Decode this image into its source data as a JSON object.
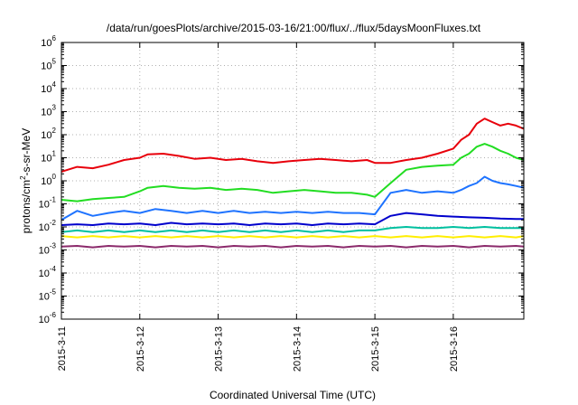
{
  "chart_data": {
    "type": "line",
    "title": "/data/run/goesPlots/archive/2015-03-16/21:00/flux/../flux/5daysMoonFluxes.txt",
    "xlabel": "Coordinated Universal Time (UTC)",
    "ylabel": {
      "main": "protons/cm",
      "sup": "2",
      "rest": "-s-sr-MeV"
    },
    "yscale": "log",
    "ylim": [
      1e-06,
      1000000.0
    ],
    "xlim": [
      0,
      5.9
    ],
    "grid": true,
    "x_tick_labels": [
      "2015-3-11",
      "2015-3-12",
      "2015-3-13",
      "2015-3-14",
      "2015-3-15",
      "2015-3-16"
    ],
    "x_ticks": [
      0,
      1,
      2,
      3,
      4,
      5
    ],
    "y_ticks": [
      {
        "base": "10",
        "exp": "-6"
      },
      {
        "base": "10",
        "exp": "-5"
      },
      {
        "base": "10",
        "exp": "-4"
      },
      {
        "base": "10",
        "exp": "-3"
      },
      {
        "base": "10",
        "exp": "-2"
      },
      {
        "base": "10",
        "exp": "-1"
      },
      {
        "base": "10",
        "exp": "0"
      },
      {
        "base": "10",
        "exp": "1"
      },
      {
        "base": "10",
        "exp": "2"
      },
      {
        "base": "10",
        "exp": "3"
      },
      {
        "base": "10",
        "exp": "4"
      },
      {
        "base": "10",
        "exp": "5"
      },
      {
        "base": "10",
        "exp": "6"
      }
    ],
    "series": [
      {
        "color": "#e8000b",
        "points": [
          [
            0,
            2.5
          ],
          [
            0.2,
            4
          ],
          [
            0.4,
            3.5
          ],
          [
            0.6,
            5
          ],
          [
            0.8,
            8
          ],
          [
            1.0,
            10
          ],
          [
            1.1,
            14
          ],
          [
            1.3,
            15
          ],
          [
            1.5,
            12
          ],
          [
            1.7,
            9
          ],
          [
            1.9,
            10
          ],
          [
            2.1,
            8
          ],
          [
            2.3,
            9
          ],
          [
            2.5,
            7
          ],
          [
            2.7,
            6
          ],
          [
            2.9,
            7
          ],
          [
            3.1,
            8
          ],
          [
            3.3,
            9
          ],
          [
            3.5,
            8
          ],
          [
            3.7,
            7
          ],
          [
            3.9,
            8
          ],
          [
            4.0,
            6
          ],
          [
            4.2,
            6
          ],
          [
            4.4,
            8
          ],
          [
            4.6,
            10
          ],
          [
            4.8,
            15
          ],
          [
            5.0,
            25
          ],
          [
            5.1,
            60
          ],
          [
            5.2,
            100
          ],
          [
            5.3,
            300
          ],
          [
            5.4,
            500
          ],
          [
            5.5,
            350
          ],
          [
            5.6,
            250
          ],
          [
            5.7,
            300
          ],
          [
            5.8,
            250
          ],
          [
            5.9,
            180
          ]
        ]
      },
      {
        "color": "#22dd22",
        "points": [
          [
            0,
            0.15
          ],
          [
            0.2,
            0.13
          ],
          [
            0.4,
            0.16
          ],
          [
            0.6,
            0.18
          ],
          [
            0.8,
            0.2
          ],
          [
            1.0,
            0.35
          ],
          [
            1.1,
            0.5
          ],
          [
            1.3,
            0.6
          ],
          [
            1.5,
            0.5
          ],
          [
            1.7,
            0.45
          ],
          [
            1.9,
            0.5
          ],
          [
            2.1,
            0.4
          ],
          [
            2.3,
            0.45
          ],
          [
            2.5,
            0.4
          ],
          [
            2.7,
            0.3
          ],
          [
            2.9,
            0.35
          ],
          [
            3.1,
            0.4
          ],
          [
            3.3,
            0.35
          ],
          [
            3.5,
            0.3
          ],
          [
            3.7,
            0.3
          ],
          [
            3.9,
            0.25
          ],
          [
            4.0,
            0.2
          ],
          [
            4.2,
            0.8
          ],
          [
            4.4,
            3
          ],
          [
            4.6,
            4
          ],
          [
            4.8,
            4.5
          ],
          [
            5.0,
            5
          ],
          [
            5.1,
            10
          ],
          [
            5.2,
            15
          ],
          [
            5.3,
            30
          ],
          [
            5.4,
            40
          ],
          [
            5.5,
            30
          ],
          [
            5.6,
            20
          ],
          [
            5.7,
            15
          ],
          [
            5.8,
            10
          ],
          [
            5.9,
            8
          ]
        ]
      },
      {
        "color": "#1e73ff",
        "points": [
          [
            0,
            0.02
          ],
          [
            0.2,
            0.05
          ],
          [
            0.4,
            0.03
          ],
          [
            0.6,
            0.04
          ],
          [
            0.8,
            0.05
          ],
          [
            1.0,
            0.04
          ],
          [
            1.2,
            0.06
          ],
          [
            1.4,
            0.05
          ],
          [
            1.6,
            0.04
          ],
          [
            1.8,
            0.05
          ],
          [
            2.0,
            0.04
          ],
          [
            2.2,
            0.05
          ],
          [
            2.4,
            0.04
          ],
          [
            2.6,
            0.045
          ],
          [
            2.8,
            0.04
          ],
          [
            3.0,
            0.045
          ],
          [
            3.2,
            0.04
          ],
          [
            3.4,
            0.045
          ],
          [
            3.6,
            0.04
          ],
          [
            3.8,
            0.04
          ],
          [
            4.0,
            0.035
          ],
          [
            4.2,
            0.3
          ],
          [
            4.4,
            0.4
          ],
          [
            4.6,
            0.3
          ],
          [
            4.8,
            0.35
          ],
          [
            5.0,
            0.3
          ],
          [
            5.1,
            0.4
          ],
          [
            5.2,
            0.6
          ],
          [
            5.3,
            0.8
          ],
          [
            5.4,
            1.5
          ],
          [
            5.5,
            1.0
          ],
          [
            5.6,
            0.8
          ],
          [
            5.7,
            0.7
          ],
          [
            5.8,
            0.6
          ],
          [
            5.9,
            0.5
          ]
        ]
      },
      {
        "color": "#0000cc",
        "points": [
          [
            0,
            0.012
          ],
          [
            0.2,
            0.013
          ],
          [
            0.4,
            0.012
          ],
          [
            0.6,
            0.014
          ],
          [
            0.8,
            0.013
          ],
          [
            1.0,
            0.014
          ],
          [
            1.2,
            0.012
          ],
          [
            1.4,
            0.015
          ],
          [
            1.6,
            0.013
          ],
          [
            1.8,
            0.014
          ],
          [
            2.0,
            0.013
          ],
          [
            2.2,
            0.014
          ],
          [
            2.4,
            0.012
          ],
          [
            2.6,
            0.014
          ],
          [
            2.8,
            0.013
          ],
          [
            3.0,
            0.014
          ],
          [
            3.2,
            0.012
          ],
          [
            3.4,
            0.014
          ],
          [
            3.6,
            0.013
          ],
          [
            3.8,
            0.014
          ],
          [
            4.0,
            0.013
          ],
          [
            4.2,
            0.03
          ],
          [
            4.4,
            0.04
          ],
          [
            4.6,
            0.035
          ],
          [
            4.8,
            0.03
          ],
          [
            5.0,
            0.028
          ],
          [
            5.2,
            0.026
          ],
          [
            5.4,
            0.025
          ],
          [
            5.6,
            0.023
          ],
          [
            5.8,
            0.022
          ],
          [
            5.9,
            0.022
          ]
        ]
      },
      {
        "color": "#00c0a0",
        "points": [
          [
            0,
            0.006
          ],
          [
            0.2,
            0.007
          ],
          [
            0.4,
            0.006
          ],
          [
            0.6,
            0.007
          ],
          [
            0.8,
            0.006
          ],
          [
            1.0,
            0.007
          ],
          [
            1.2,
            0.006
          ],
          [
            1.4,
            0.007
          ],
          [
            1.6,
            0.006
          ],
          [
            1.8,
            0.007
          ],
          [
            2.0,
            0.006
          ],
          [
            2.2,
            0.007
          ],
          [
            2.4,
            0.006
          ],
          [
            2.6,
            0.007
          ],
          [
            2.8,
            0.006
          ],
          [
            3.0,
            0.007
          ],
          [
            3.2,
            0.006
          ],
          [
            3.4,
            0.007
          ],
          [
            3.6,
            0.006
          ],
          [
            3.8,
            0.007
          ],
          [
            4.0,
            0.007
          ],
          [
            4.2,
            0.009
          ],
          [
            4.4,
            0.01
          ],
          [
            4.6,
            0.009
          ],
          [
            4.8,
            0.009
          ],
          [
            5.0,
            0.01
          ],
          [
            5.2,
            0.009
          ],
          [
            5.4,
            0.01
          ],
          [
            5.6,
            0.009
          ],
          [
            5.8,
            0.009
          ],
          [
            5.9,
            0.009
          ]
        ]
      },
      {
        "color": "#ffee00",
        "points": [
          [
            0,
            0.004
          ],
          [
            0.2,
            0.0035
          ],
          [
            0.4,
            0.004
          ],
          [
            0.6,
            0.0035
          ],
          [
            0.8,
            0.004
          ],
          [
            1.0,
            0.0035
          ],
          [
            1.2,
            0.004
          ],
          [
            1.4,
            0.0035
          ],
          [
            1.6,
            0.004
          ],
          [
            1.8,
            0.0035
          ],
          [
            2.0,
            0.004
          ],
          [
            2.2,
            0.0035
          ],
          [
            2.4,
            0.004
          ],
          [
            2.6,
            0.0035
          ],
          [
            2.8,
            0.004
          ],
          [
            3.0,
            0.0035
          ],
          [
            3.2,
            0.004
          ],
          [
            3.4,
            0.0035
          ],
          [
            3.6,
            0.004
          ],
          [
            3.8,
            0.0035
          ],
          [
            4.0,
            0.004
          ],
          [
            4.2,
            0.0035
          ],
          [
            4.4,
            0.004
          ],
          [
            4.6,
            0.0035
          ],
          [
            4.8,
            0.004
          ],
          [
            5.0,
            0.0035
          ],
          [
            5.2,
            0.004
          ],
          [
            5.4,
            0.0035
          ],
          [
            5.6,
            0.004
          ],
          [
            5.8,
            0.0035
          ],
          [
            5.9,
            0.004
          ]
        ]
      },
      {
        "color": "#8b2a6b",
        "points": [
          [
            0,
            0.0014
          ],
          [
            0.2,
            0.0015
          ],
          [
            0.4,
            0.0013
          ],
          [
            0.6,
            0.0015
          ],
          [
            0.8,
            0.0014
          ],
          [
            1.0,
            0.0015
          ],
          [
            1.2,
            0.0013
          ],
          [
            1.4,
            0.0015
          ],
          [
            1.6,
            0.0014
          ],
          [
            1.8,
            0.0015
          ],
          [
            2.0,
            0.0013
          ],
          [
            2.2,
            0.0015
          ],
          [
            2.4,
            0.0014
          ],
          [
            2.6,
            0.0015
          ],
          [
            2.8,
            0.0013
          ],
          [
            3.0,
            0.0015
          ],
          [
            3.2,
            0.0014
          ],
          [
            3.4,
            0.0015
          ],
          [
            3.6,
            0.0013
          ],
          [
            3.8,
            0.0015
          ],
          [
            4.0,
            0.0014
          ],
          [
            4.2,
            0.0015
          ],
          [
            4.4,
            0.0013
          ],
          [
            4.6,
            0.0015
          ],
          [
            4.8,
            0.0014
          ],
          [
            5.0,
            0.0015
          ],
          [
            5.2,
            0.0013
          ],
          [
            5.4,
            0.0015
          ],
          [
            5.6,
            0.0014
          ],
          [
            5.8,
            0.0015
          ],
          [
            5.9,
            0.0014
          ]
        ]
      }
    ]
  }
}
